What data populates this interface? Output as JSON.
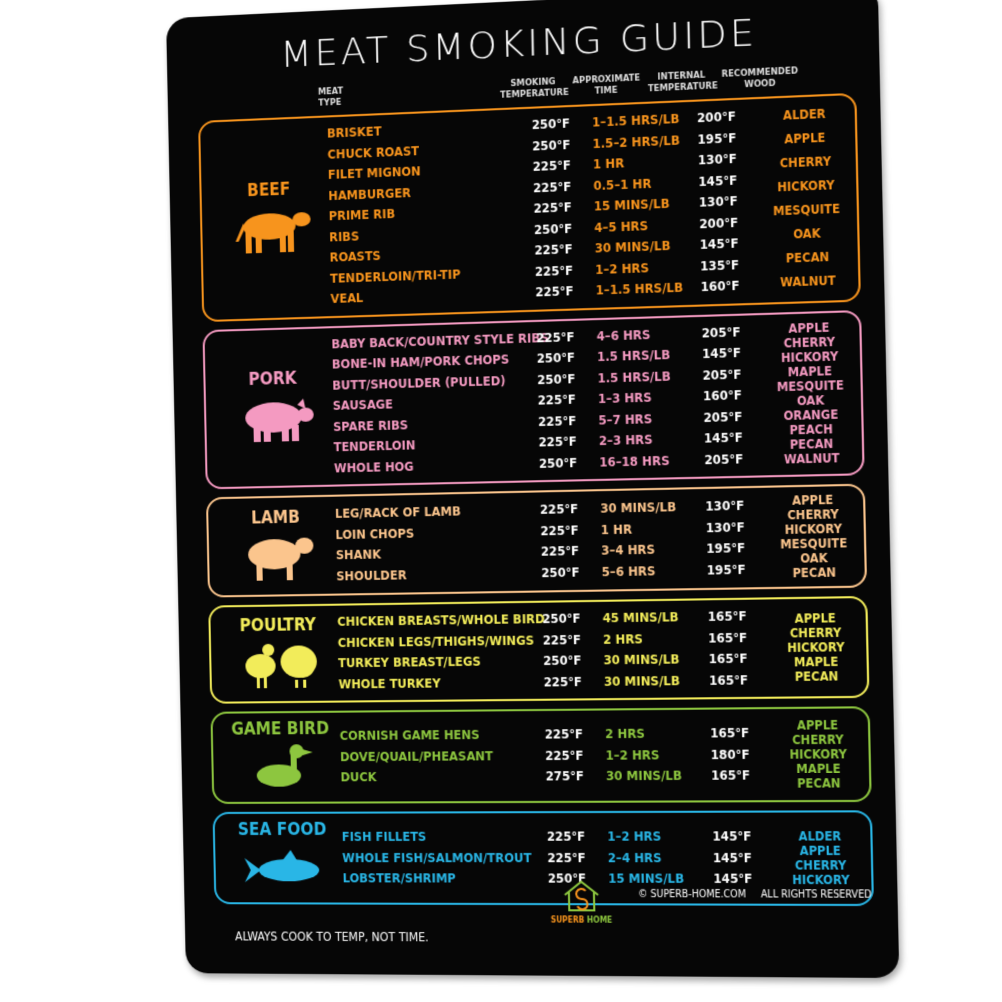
{
  "title": "MEAT SMOKING GUIDE",
  "headers": {
    "meat_type": "MEAT TYPE",
    "smoking_temp": "SMOKING TEMPERATURE",
    "time": "APPROXIMATE TIME",
    "internal": "INTERNAL TEMPERATURE",
    "wood": "RECOMMENDED WOOD"
  },
  "sections": [
    {
      "label": "BEEF",
      "icon": "cow-icon",
      "color": "#f7941d",
      "rows": [
        [
          "BRISKET",
          "250°F",
          "1–1.5 HRS/LB",
          "200°F"
        ],
        [
          "CHUCK ROAST",
          "250°F",
          "1.5–2 HRS/LB",
          "195°F"
        ],
        [
          "FILET MIGNON",
          "225°F",
          "1 HR",
          "130°F"
        ],
        [
          "HAMBURGER",
          "225°F",
          "0.5–1 HR",
          "145°F"
        ],
        [
          "PRIME RIB",
          "225°F",
          "15 MINS/LB",
          "130°F"
        ],
        [
          "RIBS",
          "250°F",
          "4–5 HRS",
          "200°F"
        ],
        [
          "ROASTS",
          "225°F",
          "30 MINS/LB",
          "145°F"
        ],
        [
          "TENDERLOIN/TRI-TIP",
          "225°F",
          "1–2 HRS",
          "135°F"
        ],
        [
          "VEAL",
          "225°F",
          "1–1.5 HRS/LB",
          "160°F"
        ]
      ],
      "woods": [
        "ALDER",
        "APPLE",
        "CHERRY",
        "HICKORY",
        "MESQUITE",
        "OAK",
        "PECAN",
        "WALNUT"
      ]
    },
    {
      "label": "PORK",
      "icon": "pig-icon",
      "color": "#f49ac1",
      "rows": [
        [
          "BABY BACK/COUNTRY STYLE RIBS",
          "225°F",
          "4–6 HRS",
          "205°F"
        ],
        [
          "BONE-IN HAM/PORK CHOPS",
          "250°F",
          "1.5 HRS/LB",
          "145°F"
        ],
        [
          "BUTT/SHOULDER (PULLED)",
          "250°F",
          "1.5 HRS/LB",
          "205°F"
        ],
        [
          "SAUSAGE",
          "225°F",
          "1–3 HRS",
          "160°F"
        ],
        [
          "SPARE RIBS",
          "225°F",
          "5–7 HRS",
          "205°F"
        ],
        [
          "TENDERLOIN",
          "225°F",
          "2–3 HRS",
          "145°F"
        ],
        [
          "WHOLE HOG",
          "250°F",
          "16–18 HRS",
          "205°F"
        ]
      ],
      "woods": [
        "APPLE",
        "CHERRY",
        "HICKORY",
        "MAPLE",
        "MESQUITE",
        "OAK",
        "ORANGE",
        "PEACH",
        "PECAN",
        "WALNUT"
      ]
    },
    {
      "label": "LAMB",
      "icon": "sheep-icon",
      "color": "#fbc58d",
      "rows": [
        [
          "LEG/RACK OF LAMB",
          "225°F",
          "30 MINS/LB",
          "130°F"
        ],
        [
          "LOIN CHOPS",
          "225°F",
          "1 HR",
          "130°F"
        ],
        [
          "SHANK",
          "225°F",
          "3–4 HRS",
          "195°F"
        ],
        [
          "SHOULDER",
          "250°F",
          "5–6 HRS",
          "195°F"
        ]
      ],
      "woods": [
        "APPLE",
        "CHERRY",
        "HICKORY",
        "MESQUITE",
        "OAK",
        "PECAN"
      ]
    },
    {
      "label": "POULTRY",
      "icon": "chicken-turkey-icon",
      "color": "#f2ec5a",
      "rows": [
        [
          "CHICKEN BREASTS/WHOLE BIRD",
          "250°F",
          "45 MINS/LB",
          "165°F"
        ],
        [
          "CHICKEN LEGS/THIGHS/WINGS",
          "225°F",
          "2 HRS",
          "165°F"
        ],
        [
          "TURKEY BREAST/LEGS",
          "250°F",
          "30 MINS/LB",
          "165°F"
        ],
        [
          "WHOLE TURKEY",
          "225°F",
          "30 MINS/LB",
          "165°F"
        ]
      ],
      "woods": [
        "APPLE",
        "CHERRY",
        "HICKORY",
        "MAPLE",
        "PECAN"
      ]
    },
    {
      "label": "GAME BIRD",
      "icon": "duck-icon",
      "color": "#8dc63f",
      "rows": [
        [
          "CORNISH GAME HENS",
          "225°F",
          "2 HRS",
          "165°F"
        ],
        [
          "DOVE/QUAIL/PHEASANT",
          "225°F",
          "1–2 HRS",
          "180°F"
        ],
        [
          "DUCK",
          "275°F",
          "30 MINS/LB",
          "165°F"
        ]
      ],
      "woods": [
        "APPLE",
        "CHERRY",
        "HICKORY",
        "MAPLE",
        "PECAN"
      ]
    },
    {
      "label": "SEA FOOD",
      "icon": "fish-icon",
      "color": "#29b6e6",
      "rows": [
        [
          "FISH FILLETS",
          "225°F",
          "1–2 HRS",
          "145°F"
        ],
        [
          "WHOLE FISH/SALMON/TROUT",
          "225°F",
          "2–4 HRS",
          "145°F"
        ],
        [
          "LOBSTER/SHRIMP",
          "250°F",
          "15 MINS/LB",
          "145°F"
        ]
      ],
      "woods": [
        "ALDER",
        "APPLE",
        "CHERRY",
        "HICKORY"
      ]
    }
  ],
  "footer": {
    "note": "ALWAYS COOK TO TEMP, NOT TIME.",
    "brand_a": "SUPERB",
    "brand_b": "HOME",
    "copyright": "© SUPERB-HOME.COM",
    "rights": "ALL RIGHTS RESERVED"
  }
}
